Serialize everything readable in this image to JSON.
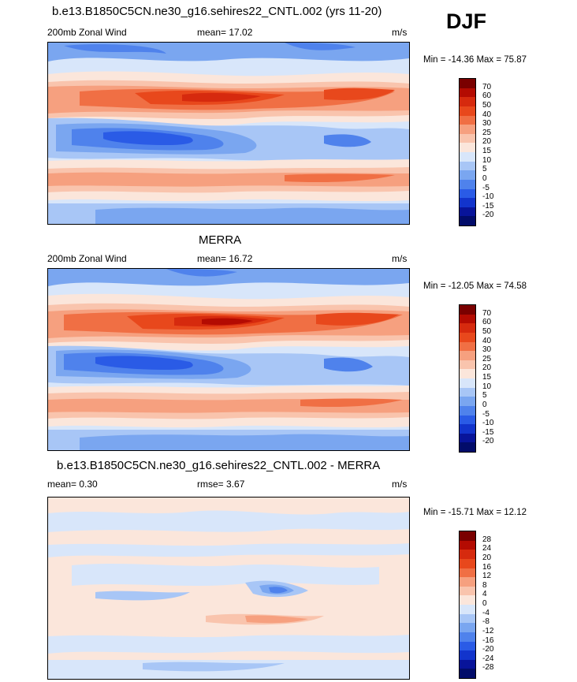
{
  "season": "DJF",
  "panels": [
    {
      "title": "b.e13.B1850C5CN.ne30_g16.sehires22_CNTL.002 (yrs 11-20)",
      "left_label": "200mb Zonal Wind",
      "center_label": "mean=  17.02",
      "units": "m/s",
      "minmax": "Min = -14.36 Max =  75.87",
      "colorbar": {
        "levels": [
          "70",
          "60",
          "50",
          "40",
          "30",
          "25",
          "20",
          "15",
          "10",
          "5",
          "0",
          "-5",
          "-10",
          "-15",
          "-20"
        ],
        "colors": [
          "#7a0000",
          "#b40b02",
          "#d62a0e",
          "#e8481c",
          "#f06f44",
          "#f6a07f",
          "#f9c4ad",
          "#fbe6db",
          "#d8e6fa",
          "#a8c6f6",
          "#7aa6f0",
          "#4f82ec",
          "#2a5be6",
          "#1234cc",
          "#08149a",
          "#020c6a"
        ]
      }
    },
    {
      "title": "MERRA",
      "left_label": "200mb Zonal Wind",
      "center_label": "mean=  16.72",
      "units": "m/s",
      "minmax": "Min = -12.05 Max =  74.58",
      "colorbar": {
        "levels": [
          "70",
          "60",
          "50",
          "40",
          "30",
          "25",
          "20",
          "15",
          "10",
          "5",
          "0",
          "-5",
          "-10",
          "-15",
          "-20"
        ],
        "colors": [
          "#7a0000",
          "#b40b02",
          "#d62a0e",
          "#e8481c",
          "#f06f44",
          "#f6a07f",
          "#f9c4ad",
          "#fbe6db",
          "#d8e6fa",
          "#a8c6f6",
          "#7aa6f0",
          "#4f82ec",
          "#2a5be6",
          "#1234cc",
          "#08149a",
          "#020c6a"
        ]
      }
    },
    {
      "title": "b.e13.B1850C5CN.ne30_g16.sehires22_CNTL.002 - MERRA",
      "left_label": "mean=   0.30",
      "center_label": "rmse=   3.67",
      "units": "m/s",
      "minmax": "Min = -15.71 Max =  12.12",
      "colorbar": {
        "levels": [
          "28",
          "24",
          "20",
          "16",
          "12",
          "8",
          "4",
          "0",
          "-4",
          "-8",
          "-12",
          "-16",
          "-20",
          "-24",
          "-28"
        ],
        "colors": [
          "#7a0000",
          "#b40b02",
          "#d62a0e",
          "#e8481c",
          "#f06f44",
          "#f6a07f",
          "#f9c4ad",
          "#fbe6db",
          "#d8e6fa",
          "#a8c6f6",
          "#7aa6f0",
          "#4f82ec",
          "#2a5be6",
          "#1234cc",
          "#08149a",
          "#020c6a"
        ]
      }
    }
  ]
}
